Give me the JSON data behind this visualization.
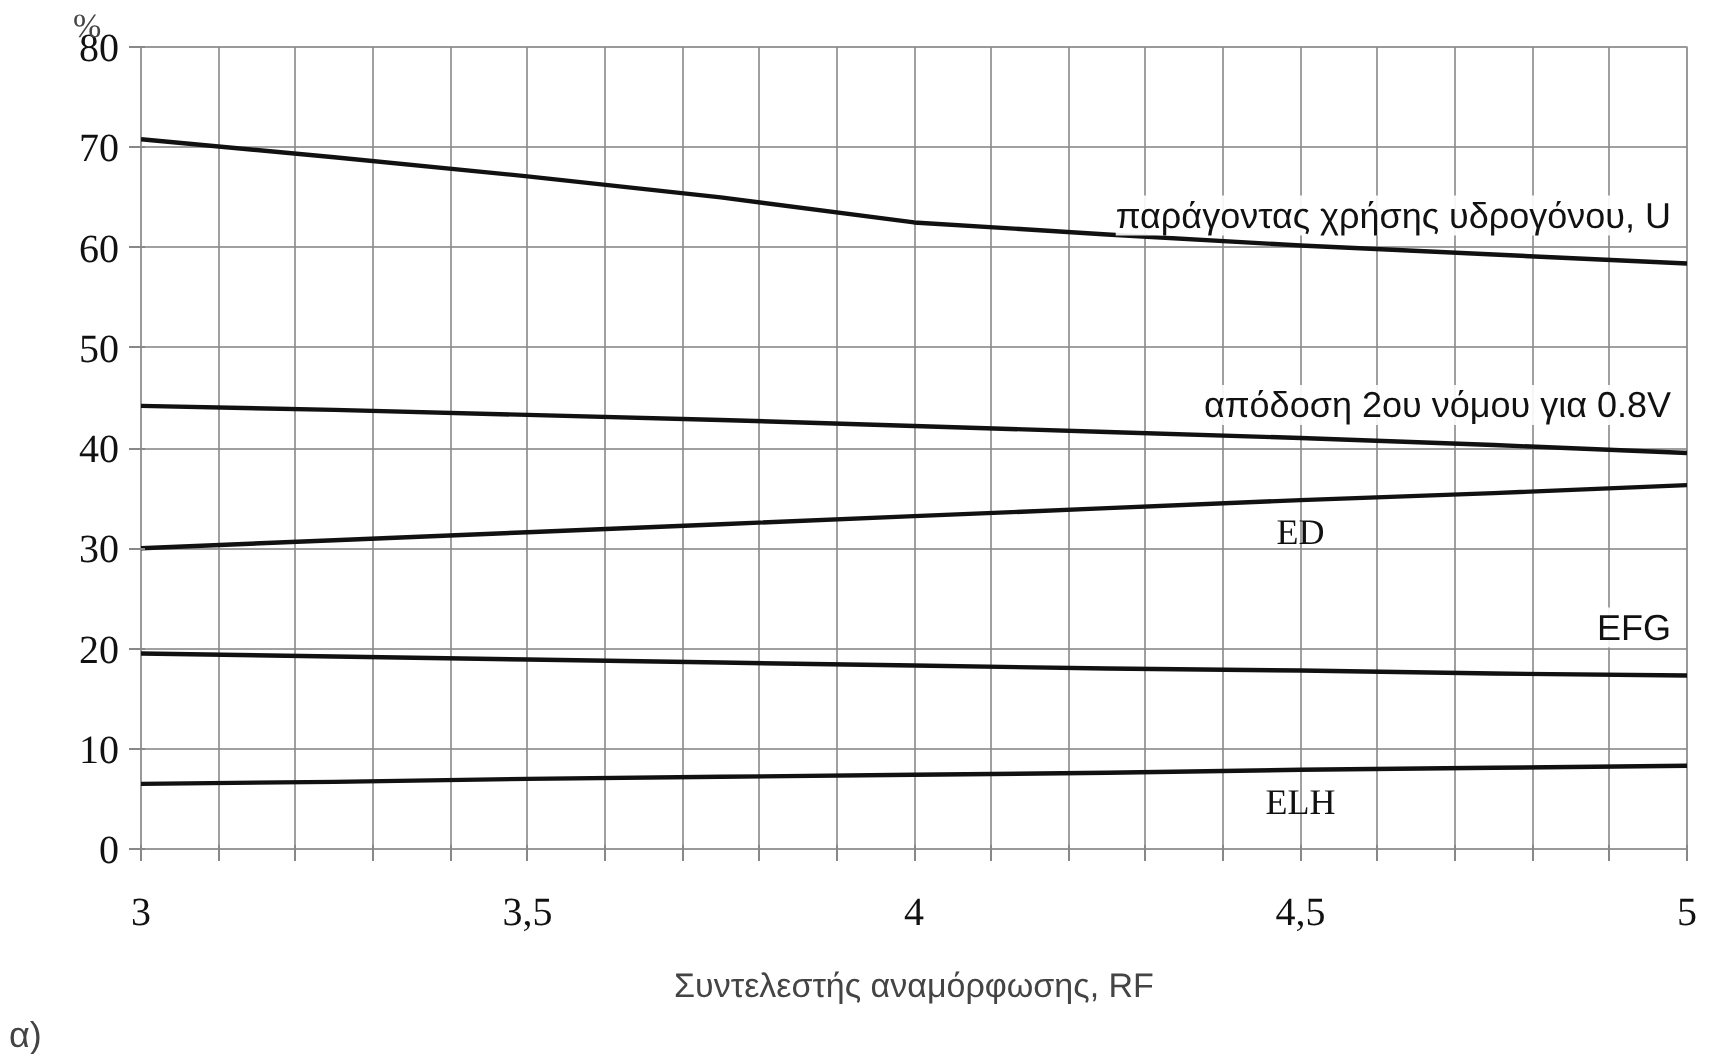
{
  "chart_data": {
    "type": "line",
    "xlabel": "Συντελεστής αναμόρφωσης, RF",
    "ylabel": "%",
    "annotations": [
      "α)"
    ],
    "x": [
      3,
      3.25,
      3.5,
      3.75,
      4,
      4.25,
      4.5,
      4.75,
      5
    ],
    "series": [
      {
        "name": "παράγοντας χρήσης υδρογόνου, U",
        "color": "#111111",
        "values": [
          70.8,
          69,
          67.1,
          65,
          62.5,
          61.3,
          60.2,
          59.3,
          58.4
        ]
      },
      {
        "name": "απόδοση 2ου νόμου για 0.8V",
        "color": "#111111",
        "values": [
          44.2,
          43.8,
          43.3,
          42.8,
          42.2,
          41.6,
          41,
          40.3,
          39.5
        ]
      },
      {
        "name": "ED",
        "color": "#111111",
        "values": [
          30,
          30.8,
          31.6,
          32.4,
          33.2,
          34,
          34.8,
          35.5,
          36.3
        ]
      },
      {
        "name": "EFG",
        "color": "#111111",
        "values": [
          19.5,
          19.2,
          18.9,
          18.6,
          18.3,
          18,
          17.8,
          17.5,
          17.3
        ]
      },
      {
        "name": "ELH",
        "color": "#111111",
        "values": [
          6.5,
          6.7,
          7,
          7.2,
          7.4,
          7.6,
          7.9,
          8.1,
          8.3
        ]
      }
    ],
    "xlim": [
      3,
      5
    ],
    "ylim": [
      0,
      80
    ],
    "xticks": [
      3,
      {
        "value": 3.1,
        "label": null
      },
      {
        "value": 3.2,
        "label": null
      },
      {
        "value": 3.3,
        "label": null
      },
      {
        "value": 3.4,
        "label": null
      },
      {
        "value": 3.5,
        "label": "3,5"
      },
      {
        "value": 3.6,
        "label": null
      },
      {
        "value": 3.7,
        "label": null
      },
      {
        "value": 3.8,
        "label": null
      },
      {
        "value": 3.9,
        "label": null
      },
      4,
      {
        "value": 4.1,
        "label": null
      },
      {
        "value": 4.2,
        "label": null
      },
      {
        "value": 4.3,
        "label": null
      },
      {
        "value": 4.4,
        "label": null
      },
      {
        "value": 4.5,
        "label": "4,5"
      },
      {
        "value": 4.6,
        "label": null
      },
      {
        "value": 4.7,
        "label": null
      },
      {
        "value": 4.8,
        "label": null
      },
      {
        "value": 4.9,
        "label": null
      },
      5
    ],
    "yticks": [
      0,
      10,
      20,
      30,
      40,
      50,
      60,
      70,
      80
    ],
    "grid": true,
    "marker": "none",
    "line_style": "solid"
  }
}
